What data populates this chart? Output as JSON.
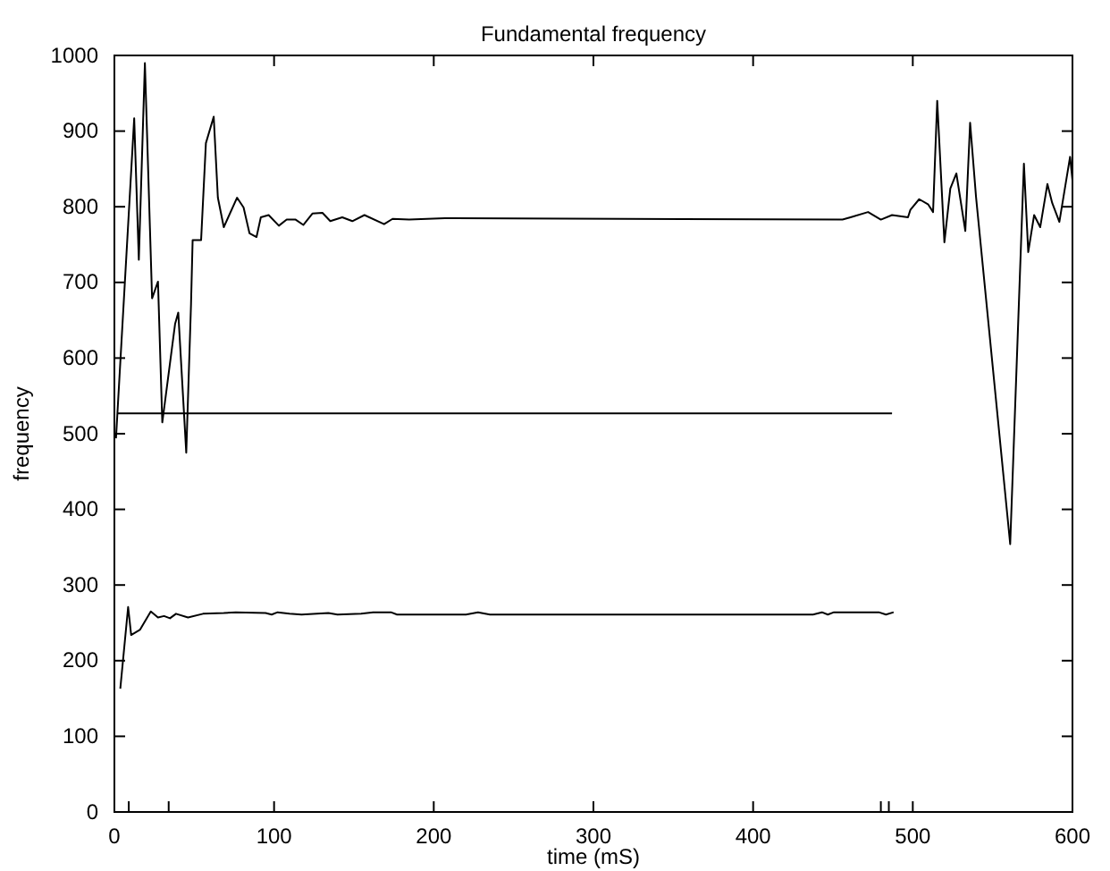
{
  "chart_data": {
    "type": "line",
    "title": "Fundamental frequency",
    "xlabel": "time (mS)",
    "ylabel": "frequency",
    "xlim": [
      0,
      600
    ],
    "xticks": [
      0,
      {
        "value": 9,
        "label": null
      },
      {
        "value": 34,
        "label": null
      },
      100,
      200,
      300,
      400,
      {
        "value": 480,
        "label": null
      },
      {
        "value": 485,
        "label": null
      },
      500,
      600
    ],
    "ylim": [
      0,
      1000
    ],
    "yticks": [
      0,
      100,
      200,
      300,
      400,
      500,
      600,
      700,
      800,
      900,
      1000
    ],
    "grid": false,
    "marker": "none",
    "line_style": "solid",
    "series": [
      {
        "color": "#000000",
        "x": [
          1,
          12.4,
          15.3,
          19.1,
          23.6,
          27.3,
          30,
          38,
          40,
          45,
          48,
          49,
          54.3,
          57.3,
          62.2,
          64.8,
          68.5,
          76.8,
          80.9,
          84.6,
          89,
          91.7,
          96.6,
          103,
          107.9,
          113.5,
          118.3,
          124,
          130.3,
          135.2,
          142.7,
          149,
          156.6,
          168.9,
          174.2,
          184.6,
          207,
          456,
          461,
          472,
          480,
          487,
          497,
          498.5,
          504,
          509.7,
          512.7,
          515.3,
          519.8,
          523.5,
          527.3,
          532.9,
          535.9,
          539.6,
          561,
          569.6,
          572.3,
          576,
          579.8,
          584.3,
          587.3,
          591.8,
          598.5,
          600
        ],
        "values": [
          494,
          917,
          730,
          990,
          679,
          701,
          515,
          645,
          660,
          475,
          672,
          756,
          756,
          884,
          919,
          812,
          773,
          812,
          799,
          765,
          760,
          786,
          789,
          775,
          783,
          783,
          776,
          791,
          792,
          781,
          786,
          781,
          789,
          777,
          784,
          783,
          785,
          783,
          786,
          793,
          783,
          789,
          786,
          796,
          810,
          803,
          793,
          940,
          753,
          824,
          844,
          768,
          911,
          813,
          354,
          857,
          740,
          789,
          773,
          830,
          805,
          780,
          866,
          835
        ]
      },
      {
        "color": "#000000",
        "x": [
          2,
          487
        ],
        "values": [
          527,
          527
        ]
      },
      {
        "color": "#000000",
        "x": [
          3.7,
          8.6,
          10.5,
          16.1,
          22.8,
          27.3,
          31.1,
          34.8,
          38.6,
          46.1,
          55.5,
          68.5,
          76,
          94.7,
          98.5,
          102.2,
          109.7,
          117.2,
          134,
          139.7,
          154.5,
          162,
          173.2,
          177,
          214.6,
          220.2,
          227.7,
          235.2,
          437.5,
          443.1,
          446.8,
          450.6,
          478.7,
          483.2,
          488
        ],
        "values": [
          163,
          271,
          234,
          241,
          265,
          257,
          259,
          256,
          262,
          257,
          262,
          263,
          264,
          263,
          261,
          264,
          262,
          261,
          263,
          261,
          262,
          264,
          264,
          261,
          261,
          261,
          264,
          261,
          261,
          264,
          261,
          264,
          264,
          261,
          264
        ]
      }
    ]
  }
}
